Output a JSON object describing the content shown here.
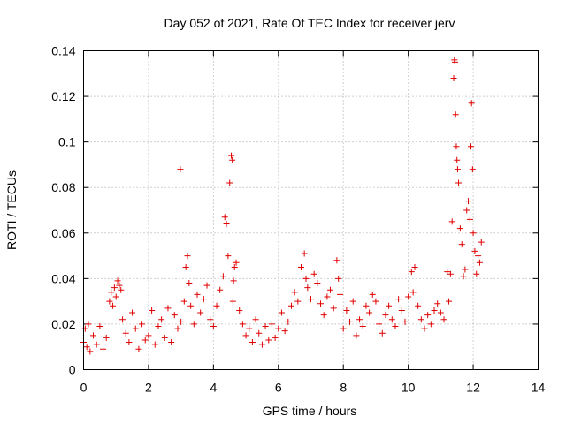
{
  "chart_data": {
    "type": "scatter",
    "title": "Day 052 of 2021, Rate Of TEC Index for receiver jerv",
    "xlabel": "GPS time / hours",
    "ylabel": "ROTI / TECUs",
    "xlim": [
      0,
      14
    ],
    "ylim": [
      0,
      0.14
    ],
    "x_ticks": [
      0,
      2,
      4,
      6,
      8,
      10,
      12,
      14
    ],
    "x_tick_labels": [
      "0",
      "2",
      "4",
      "6",
      "8",
      "10",
      "12",
      "14"
    ],
    "y_ticks": [
      0,
      0.02,
      0.04,
      0.06,
      0.08,
      0.1,
      0.12,
      0.14
    ],
    "y_tick_labels": [
      "0",
      "0.02",
      "0.04",
      "0.06",
      "0.08",
      "0.1",
      "0.12",
      "0.14"
    ],
    "grid": true,
    "marker": "+",
    "color": "#e00000",
    "series": [
      {
        "name": "ROTI",
        "x": [
          0.0,
          0.05,
          0.1,
          0.15,
          0.2,
          0.3,
          0.4,
          0.5,
          0.6,
          0.7,
          0.8,
          0.85,
          0.9,
          0.95,
          1.0,
          1.05,
          1.1,
          1.15,
          1.2,
          1.3,
          1.4,
          1.5,
          1.6,
          1.7,
          1.8,
          1.9,
          2.0,
          2.1,
          2.2,
          2.3,
          2.4,
          2.5,
          2.6,
          2.7,
          2.8,
          2.9,
          2.98,
          3.0,
          3.1,
          3.15,
          3.2,
          3.25,
          3.3,
          3.4,
          3.5,
          3.6,
          3.7,
          3.8,
          3.9,
          4.0,
          4.1,
          4.2,
          4.3,
          4.35,
          4.4,
          4.45,
          4.5,
          4.55,
          4.58,
          4.6,
          4.62,
          4.65,
          4.7,
          4.8,
          4.9,
          5.0,
          5.1,
          5.2,
          5.3,
          5.4,
          5.5,
          5.6,
          5.7,
          5.8,
          5.9,
          6.0,
          6.1,
          6.2,
          6.3,
          6.4,
          6.5,
          6.6,
          6.7,
          6.8,
          6.85,
          6.9,
          7.0,
          7.1,
          7.2,
          7.3,
          7.4,
          7.5,
          7.6,
          7.7,
          7.8,
          7.85,
          7.9,
          8.0,
          8.1,
          8.2,
          8.3,
          8.4,
          8.5,
          8.6,
          8.7,
          8.8,
          8.9,
          9.0,
          9.1,
          9.2,
          9.3,
          9.4,
          9.5,
          9.6,
          9.7,
          9.8,
          9.9,
          10.0,
          10.1,
          10.15,
          10.2,
          10.3,
          10.4,
          10.5,
          10.6,
          10.7,
          10.8,
          10.9,
          11.0,
          11.1,
          11.2,
          11.25,
          11.3,
          11.35,
          11.4,
          11.42,
          11.44,
          11.46,
          11.48,
          11.5,
          11.52,
          11.55,
          11.6,
          11.65,
          11.7,
          11.75,
          11.8,
          11.85,
          11.9,
          11.93,
          11.95,
          11.98,
          12.0,
          12.05,
          12.1,
          12.15,
          12.2,
          12.25
        ],
        "y": [
          0.012,
          0.018,
          0.01,
          0.02,
          0.008,
          0.015,
          0.011,
          0.019,
          0.009,
          0.014,
          0.03,
          0.034,
          0.028,
          0.036,
          0.032,
          0.039,
          0.037,
          0.035,
          0.022,
          0.016,
          0.012,
          0.025,
          0.018,
          0.009,
          0.02,
          0.013,
          0.015,
          0.026,
          0.011,
          0.019,
          0.022,
          0.014,
          0.027,
          0.012,
          0.024,
          0.018,
          0.088,
          0.021,
          0.03,
          0.045,
          0.05,
          0.038,
          0.028,
          0.02,
          0.033,
          0.025,
          0.031,
          0.037,
          0.022,
          0.019,
          0.028,
          0.035,
          0.041,
          0.067,
          0.064,
          0.05,
          0.082,
          0.094,
          0.092,
          0.03,
          0.039,
          0.045,
          0.047,
          0.026,
          0.02,
          0.015,
          0.018,
          0.012,
          0.022,
          0.016,
          0.011,
          0.019,
          0.013,
          0.02,
          0.014,
          0.018,
          0.025,
          0.017,
          0.021,
          0.028,
          0.034,
          0.03,
          0.045,
          0.051,
          0.04,
          0.036,
          0.031,
          0.042,
          0.038,
          0.029,
          0.024,
          0.032,
          0.035,
          0.027,
          0.048,
          0.04,
          0.033,
          0.018,
          0.026,
          0.021,
          0.03,
          0.015,
          0.022,
          0.019,
          0.028,
          0.025,
          0.033,
          0.03,
          0.02,
          0.016,
          0.024,
          0.028,
          0.022,
          0.019,
          0.031,
          0.026,
          0.021,
          0.032,
          0.043,
          0.034,
          0.045,
          0.028,
          0.022,
          0.018,
          0.024,
          0.02,
          0.026,
          0.029,
          0.025,
          0.022,
          0.043,
          0.03,
          0.042,
          0.065,
          0.128,
          0.136,
          0.135,
          0.112,
          0.098,
          0.092,
          0.088,
          0.082,
          0.062,
          0.055,
          0.041,
          0.044,
          0.07,
          0.074,
          0.066,
          0.098,
          0.117,
          0.088,
          0.06,
          0.052,
          0.042,
          0.05,
          0.047,
          0.056
        ]
      }
    ]
  }
}
